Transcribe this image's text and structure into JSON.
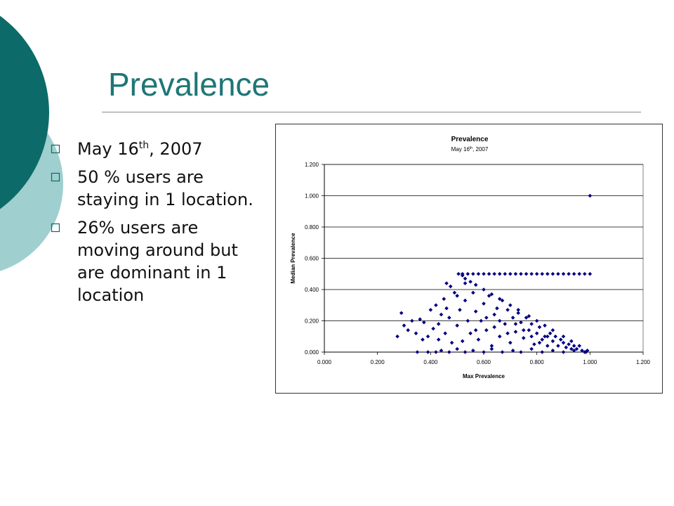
{
  "slide": {
    "title": "Prevalence",
    "bullets": [
      {
        "text": "May 16",
        "sup": "th",
        "suffix": ", 2007"
      },
      {
        "text": "50 % users are staying in 1 location."
      },
      {
        "text": "26% users are moving around but are dominant in 1 location"
      }
    ]
  },
  "colors": {
    "title": "#1f7676",
    "deco_dark": "#0c6b68",
    "deco_light": "#9fcfcf",
    "bullet": "#0c6b68",
    "marker": "#000080",
    "plot_background": "#ffffff",
    "gridline": "#000000"
  },
  "icons": {
    "bullet": "square-bullet-icon",
    "marker": "diamond-marker-icon"
  },
  "chart_data": {
    "type": "scatter",
    "title": "Prevalence",
    "subtitle": {
      "text": "May 16",
      "sup": "th",
      "suffix": ", 2007"
    },
    "xlabel": "Max Prevalence",
    "ylabel": "Median Prevalence",
    "xlim": [
      0,
      1.2
    ],
    "ylim": [
      0,
      1.2
    ],
    "xticks": [
      "0.000",
      "0.200",
      "0.400",
      "0.600",
      "0.800",
      "1.000",
      "1.200"
    ],
    "yticks": [
      "0.000",
      "0.200",
      "0.400",
      "0.600",
      "0.800",
      "1.000",
      "1.200"
    ],
    "grid": "horizontal",
    "legend": "none",
    "series": [
      {
        "points": [
          [
            1.0,
            1.0
          ],
          [
            0.505,
            0.5
          ],
          [
            0.52,
            0.5
          ],
          [
            0.54,
            0.5
          ],
          [
            0.56,
            0.5
          ],
          [
            0.58,
            0.5
          ],
          [
            0.6,
            0.5
          ],
          [
            0.62,
            0.5
          ],
          [
            0.64,
            0.5
          ],
          [
            0.66,
            0.5
          ],
          [
            0.68,
            0.5
          ],
          [
            0.7,
            0.5
          ],
          [
            0.72,
            0.5
          ],
          [
            0.74,
            0.5
          ],
          [
            0.76,
            0.5
          ],
          [
            0.78,
            0.5
          ],
          [
            0.8,
            0.5
          ],
          [
            0.82,
            0.5
          ],
          [
            0.84,
            0.5
          ],
          [
            0.86,
            0.5
          ],
          [
            0.88,
            0.5
          ],
          [
            0.9,
            0.5
          ],
          [
            0.92,
            0.5
          ],
          [
            0.94,
            0.5
          ],
          [
            0.96,
            0.5
          ],
          [
            0.98,
            0.5
          ],
          [
            1.0,
            0.5
          ],
          [
            0.52,
            0.49
          ],
          [
            0.53,
            0.47
          ],
          [
            0.55,
            0.45
          ],
          [
            0.57,
            0.43
          ],
          [
            0.6,
            0.4
          ],
          [
            0.63,
            0.37
          ],
          [
            0.66,
            0.34
          ],
          [
            0.7,
            0.3
          ],
          [
            0.73,
            0.27
          ],
          [
            0.77,
            0.23
          ],
          [
            0.8,
            0.2
          ],
          [
            0.83,
            0.17
          ],
          [
            0.86,
            0.14
          ],
          [
            0.9,
            0.1
          ],
          [
            0.93,
            0.07
          ],
          [
            0.96,
            0.04
          ],
          [
            0.99,
            0.01
          ],
          [
            0.275,
            0.1
          ],
          [
            0.29,
            0.25
          ],
          [
            0.3,
            0.17
          ],
          [
            0.315,
            0.14
          ],
          [
            0.33,
            0.2
          ],
          [
            0.345,
            0.12
          ],
          [
            0.36,
            0.21
          ],
          [
            0.375,
            0.19
          ],
          [
            0.39,
            0.1
          ],
          [
            0.4,
            0.27
          ],
          [
            0.41,
            0.15
          ],
          [
            0.42,
            0.3
          ],
          [
            0.43,
            0.08
          ],
          [
            0.44,
            0.24
          ],
          [
            0.45,
            0.34
          ],
          [
            0.455,
            0.12
          ],
          [
            0.46,
            0.44
          ],
          [
            0.47,
            0.22
          ],
          [
            0.475,
            0.42
          ],
          [
            0.48,
            0.06
          ],
          [
            0.49,
            0.38
          ],
          [
            0.5,
            0.17
          ],
          [
            0.51,
            0.27
          ],
          [
            0.52,
            0.07
          ],
          [
            0.53,
            0.33
          ],
          [
            0.54,
            0.2
          ],
          [
            0.55,
            0.12
          ],
          [
            0.56,
            0.38
          ],
          [
            0.57,
            0.26
          ],
          [
            0.58,
            0.08
          ],
          [
            0.59,
            0.2
          ],
          [
            0.6,
            0.31
          ],
          [
            0.61,
            0.14
          ],
          [
            0.62,
            0.36
          ],
          [
            0.63,
            0.04
          ],
          [
            0.64,
            0.24
          ],
          [
            0.65,
            0.28
          ],
          [
            0.66,
            0.1
          ],
          [
            0.67,
            0.33
          ],
          [
            0.68,
            0.18
          ],
          [
            0.69,
            0.27
          ],
          [
            0.7,
            0.06
          ],
          [
            0.71,
            0.22
          ],
          [
            0.72,
            0.13
          ],
          [
            0.73,
            0.25
          ],
          [
            0.74,
            0.19
          ],
          [
            0.75,
            0.09
          ],
          [
            0.76,
            0.22
          ],
          [
            0.77,
            0.14
          ],
          [
            0.78,
            0.18
          ],
          [
            0.79,
            0.05
          ],
          [
            0.8,
            0.12
          ],
          [
            0.81,
            0.16
          ],
          [
            0.82,
            0.08
          ],
          [
            0.83,
            0.1
          ],
          [
            0.84,
            0.04
          ],
          [
            0.85,
            0.12
          ],
          [
            0.86,
            0.07
          ],
          [
            0.87,
            0.1
          ],
          [
            0.88,
            0.04
          ],
          [
            0.89,
            0.08
          ],
          [
            0.9,
            0.06
          ],
          [
            0.91,
            0.03
          ],
          [
            0.92,
            0.05
          ],
          [
            0.93,
            0.02
          ],
          [
            0.94,
            0.04
          ],
          [
            0.95,
            0.02
          ],
          [
            0.97,
            0.01
          ],
          [
            0.985,
            0.0
          ],
          [
            0.35,
            0.0
          ],
          [
            0.39,
            0.0
          ],
          [
            0.42,
            0.0
          ],
          [
            0.44,
            0.01
          ],
          [
            0.47,
            0.0
          ],
          [
            0.5,
            0.02
          ],
          [
            0.53,
            0.0
          ],
          [
            0.56,
            0.01
          ],
          [
            0.6,
            0.0
          ],
          [
            0.63,
            0.02
          ],
          [
            0.67,
            0.0
          ],
          [
            0.71,
            0.01
          ],
          [
            0.74,
            0.0
          ],
          [
            0.78,
            0.02
          ],
          [
            0.82,
            0.0
          ],
          [
            0.86,
            0.01
          ],
          [
            0.9,
            0.0
          ],
          [
            0.94,
            0.01
          ],
          [
            0.98,
            0.0
          ],
          [
            0.37,
            0.08
          ],
          [
            0.43,
            0.18
          ],
          [
            0.46,
            0.28
          ],
          [
            0.5,
            0.36
          ],
          [
            0.53,
            0.44
          ],
          [
            0.57,
            0.14
          ],
          [
            0.61,
            0.22
          ],
          [
            0.64,
            0.16
          ],
          [
            0.66,
            0.2
          ],
          [
            0.69,
            0.12
          ],
          [
            0.72,
            0.18
          ],
          [
            0.75,
            0.14
          ],
          [
            0.78,
            0.1
          ],
          [
            0.81,
            0.06
          ],
          [
            0.84,
            0.1
          ]
        ]
      }
    ]
  }
}
